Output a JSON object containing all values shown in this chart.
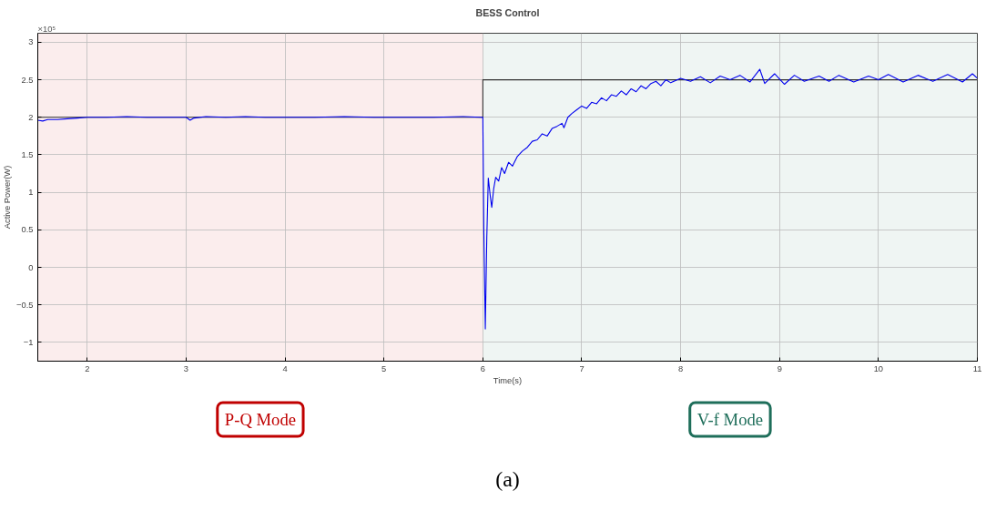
{
  "chart_data": {
    "type": "line",
    "title": "BESS Control",
    "xlabel": "Time(s)",
    "ylabel": "Active Power(W)",
    "annotations": [
      "×10⁵",
      "(a)"
    ],
    "xlim": [
      1.5,
      11
    ],
    "xticks": [
      2,
      3,
      4,
      5,
      6,
      7,
      8,
      9,
      10,
      11
    ],
    "ylim": [
      -1.25,
      3.12
    ],
    "yticks": [
      -1,
      -0.5,
      0,
      0.5,
      1,
      1.5,
      2,
      2.5,
      3
    ],
    "grid": true,
    "line_style": "solid",
    "marker": "none",
    "bands": [
      {
        "axis": "x",
        "from": 1.5,
        "to": 6,
        "label": "P-Q Mode",
        "color": "#c00000"
      },
      {
        "axis": "x",
        "from": 6,
        "to": 11,
        "label": "V-f Mode",
        "color": "#1e6e5a"
      }
    ],
    "series": [
      {
        "color": "#0000ee",
        "x": [
          1.5,
          1.55,
          1.6,
          1.7,
          1.8,
          1.9,
          2.0,
          2.2,
          2.4,
          2.6,
          2.8,
          3.0,
          3.04,
          3.08,
          3.2,
          3.4,
          3.6,
          3.8,
          4.0,
          4.3,
          4.6,
          4.9,
          5.2,
          5.5,
          5.8,
          5.98,
          6.0,
          6.01,
          6.025,
          6.04,
          6.055,
          6.075,
          6.09,
          6.11,
          6.13,
          6.16,
          6.19,
          6.22,
          6.26,
          6.3,
          6.35,
          6.4,
          6.45,
          6.5,
          6.55,
          6.6,
          6.65,
          6.7,
          6.75,
          6.8,
          6.82,
          6.86,
          6.9,
          6.95,
          7.0,
          7.05,
          7.1,
          7.15,
          7.2,
          7.25,
          7.3,
          7.35,
          7.4,
          7.45,
          7.5,
          7.55,
          7.6,
          7.65,
          7.7,
          7.75,
          7.8,
          7.85,
          7.9,
          8.0,
          8.1,
          8.2,
          8.3,
          8.4,
          8.5,
          8.6,
          8.7,
          8.8,
          8.85,
          8.95,
          9.05,
          9.15,
          9.25,
          9.4,
          9.5,
          9.6,
          9.75,
          9.9,
          10.0,
          10.1,
          10.25,
          10.4,
          10.55,
          10.7,
          10.85,
          10.95,
          11.0
        ],
        "values": [
          1.96,
          1.95,
          1.97,
          1.97,
          1.98,
          1.99,
          2.0,
          2.0,
          2.01,
          2.0,
          2.0,
          2.0,
          1.96,
          1.99,
          2.01,
          2.0,
          2.01,
          2.0,
          2.0,
          2.0,
          2.01,
          2.0,
          2.0,
          2.0,
          2.01,
          2.0,
          2.0,
          0.5,
          -0.82,
          0.4,
          1.19,
          0.95,
          0.8,
          1.05,
          1.2,
          1.15,
          1.33,
          1.25,
          1.4,
          1.35,
          1.48,
          1.55,
          1.6,
          1.68,
          1.7,
          1.78,
          1.75,
          1.85,
          1.88,
          1.92,
          1.86,
          2.0,
          2.05,
          2.1,
          2.15,
          2.12,
          2.2,
          2.18,
          2.26,
          2.22,
          2.3,
          2.28,
          2.35,
          2.3,
          2.38,
          2.34,
          2.42,
          2.38,
          2.45,
          2.48,
          2.42,
          2.5,
          2.46,
          2.52,
          2.48,
          2.54,
          2.46,
          2.55,
          2.5,
          2.56,
          2.47,
          2.64,
          2.45,
          2.58,
          2.44,
          2.56,
          2.48,
          2.55,
          2.48,
          2.56,
          2.47,
          2.55,
          2.5,
          2.57,
          2.47,
          2.56,
          2.48,
          2.57,
          2.47,
          2.58,
          2.52
        ]
      },
      {
        "color": "#333333",
        "x": [
          1.5,
          6,
          6,
          11
        ],
        "values": [
          2,
          2,
          2.5,
          2.5
        ]
      }
    ]
  }
}
